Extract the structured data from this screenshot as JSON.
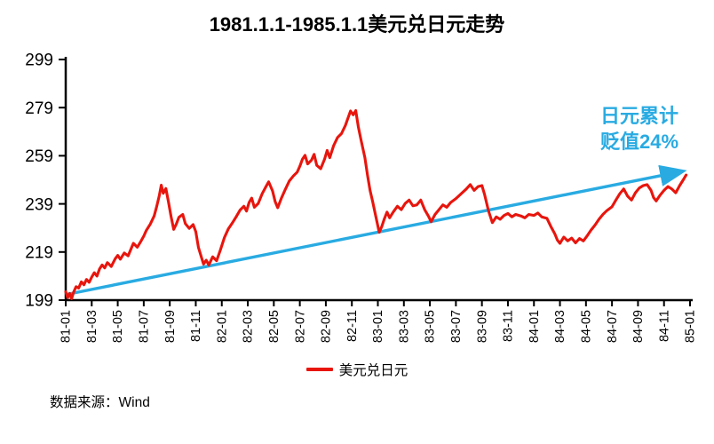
{
  "title": "1981.1.1-1985.1.1美元兑日元走势",
  "annotation": {
    "line1": "日元累计",
    "line2": "贬值24%",
    "color": "#29abe2"
  },
  "legend": {
    "label": "美元兑日元",
    "color": "#e8150d"
  },
  "source": "数据来源：Wind",
  "colors": {
    "line": "#e8150d",
    "arrow": "#29abe2",
    "axis": "#000000",
    "background": "#ffffff"
  },
  "chart_data": {
    "type": "line",
    "title": "1981.1.1-1985.1.1美元兑日元走势",
    "xlabel": "",
    "ylabel": "",
    "ylim": [
      199,
      299
    ],
    "yticks": [
      199,
      219,
      239,
      259,
      279,
      299
    ],
    "xticks": [
      "81-01",
      "81-03",
      "81-05",
      "81-07",
      "81-09",
      "81-11",
      "82-01",
      "82-03",
      "82-05",
      "82-07",
      "82-09",
      "82-11",
      "83-01",
      "83-03",
      "83-05",
      "83-07",
      "83-09",
      "83-11",
      "84-01",
      "84-03",
      "84-05",
      "84-07",
      "84-09",
      "84-11",
      "85-01"
    ],
    "x_unit": "months-from-1981-01",
    "grid": false,
    "legend_position": "bottom",
    "series": [
      {
        "name": "美元兑日元",
        "color": "#e8150d",
        "points": [
          [
            0.0,
            202.5
          ],
          [
            0.15,
            200.0
          ],
          [
            0.3,
            201.8
          ],
          [
            0.45,
            199.6
          ],
          [
            0.6,
            202.2
          ],
          [
            0.8,
            204.6
          ],
          [
            1.0,
            204.0
          ],
          [
            1.2,
            206.6
          ],
          [
            1.4,
            205.4
          ],
          [
            1.6,
            207.6
          ],
          [
            1.8,
            206.4
          ],
          [
            2.0,
            208.6
          ],
          [
            2.2,
            210.4
          ],
          [
            2.4,
            209.0
          ],
          [
            2.6,
            212.0
          ],
          [
            2.8,
            213.6
          ],
          [
            3.0,
            212.4
          ],
          [
            3.2,
            214.6
          ],
          [
            3.5,
            213.0
          ],
          [
            3.8,
            216.2
          ],
          [
            4.0,
            217.6
          ],
          [
            4.2,
            216.0
          ],
          [
            4.5,
            218.6
          ],
          [
            4.8,
            217.4
          ],
          [
            5.0,
            220.0
          ],
          [
            5.2,
            222.6
          ],
          [
            5.5,
            221.0
          ],
          [
            5.8,
            223.6
          ],
          [
            6.0,
            225.6
          ],
          [
            6.2,
            228.0
          ],
          [
            6.5,
            230.6
          ],
          [
            6.8,
            234.0
          ],
          [
            7.0,
            238.0
          ],
          [
            7.2,
            242.5
          ],
          [
            7.35,
            246.8
          ],
          [
            7.5,
            243.4
          ],
          [
            7.7,
            245.4
          ],
          [
            7.9,
            239.8
          ],
          [
            8.1,
            233.8
          ],
          [
            8.3,
            228.4
          ],
          [
            8.5,
            230.6
          ],
          [
            8.7,
            233.4
          ],
          [
            9.0,
            234.6
          ],
          [
            9.2,
            230.8
          ],
          [
            9.5,
            228.8
          ],
          [
            9.8,
            230.4
          ],
          [
            10.0,
            227.4
          ],
          [
            10.2,
            221.0
          ],
          [
            10.4,
            217.4
          ],
          [
            10.6,
            214.0
          ],
          [
            10.8,
            215.6
          ],
          [
            11.0,
            213.6
          ],
          [
            11.3,
            217.0
          ],
          [
            11.6,
            215.4
          ],
          [
            11.9,
            220.0
          ],
          [
            12.2,
            225.0
          ],
          [
            12.5,
            228.6
          ],
          [
            12.8,
            231.0
          ],
          [
            13.1,
            233.6
          ],
          [
            13.4,
            236.4
          ],
          [
            13.7,
            238.0
          ],
          [
            13.9,
            236.0
          ],
          [
            14.1,
            239.6
          ],
          [
            14.3,
            241.4
          ],
          [
            14.5,
            237.6
          ],
          [
            14.8,
            239.2
          ],
          [
            15.1,
            243.2
          ],
          [
            15.4,
            246.2
          ],
          [
            15.6,
            248.2
          ],
          [
            15.9,
            244.4
          ],
          [
            16.1,
            240.0
          ],
          [
            16.3,
            237.4
          ],
          [
            16.6,
            241.6
          ],
          [
            16.9,
            245.2
          ],
          [
            17.2,
            248.6
          ],
          [
            17.5,
            250.6
          ],
          [
            17.8,
            252.2
          ],
          [
            18.0,
            254.6
          ],
          [
            18.2,
            257.6
          ],
          [
            18.4,
            259.2
          ],
          [
            18.6,
            255.6
          ],
          [
            18.9,
            257.2
          ],
          [
            19.1,
            259.6
          ],
          [
            19.3,
            255.0
          ],
          [
            19.6,
            253.6
          ],
          [
            19.9,
            257.6
          ],
          [
            20.1,
            261.2
          ],
          [
            20.3,
            258.2
          ],
          [
            20.6,
            263.2
          ],
          [
            20.9,
            266.6
          ],
          [
            21.2,
            268.2
          ],
          [
            21.5,
            271.6
          ],
          [
            21.7,
            274.6
          ],
          [
            21.9,
            277.6
          ],
          [
            22.1,
            276.0
          ],
          [
            22.3,
            277.8
          ],
          [
            22.5,
            271.0
          ],
          [
            22.7,
            265.6
          ],
          [
            23.0,
            258.2
          ],
          [
            23.2,
            251.0
          ],
          [
            23.4,
            244.6
          ],
          [
            23.6,
            240.0
          ],
          [
            23.8,
            234.8
          ],
          [
            24.1,
            227.2
          ],
          [
            24.3,
            229.6
          ],
          [
            24.5,
            232.8
          ],
          [
            24.7,
            235.6
          ],
          [
            24.9,
            233.2
          ],
          [
            25.2,
            235.8
          ],
          [
            25.5,
            238.0
          ],
          [
            25.8,
            236.6
          ],
          [
            26.1,
            239.2
          ],
          [
            26.4,
            240.6
          ],
          [
            26.7,
            238.2
          ],
          [
            27.0,
            238.6
          ],
          [
            27.3,
            240.6
          ],
          [
            27.6,
            236.6
          ],
          [
            27.9,
            233.8
          ],
          [
            28.1,
            231.6
          ],
          [
            28.4,
            234.6
          ],
          [
            28.7,
            236.6
          ],
          [
            29.0,
            238.6
          ],
          [
            29.3,
            237.6
          ],
          [
            29.6,
            239.6
          ],
          [
            30.0,
            241.2
          ],
          [
            30.4,
            243.2
          ],
          [
            30.8,
            245.2
          ],
          [
            31.1,
            247.0
          ],
          [
            31.4,
            244.6
          ],
          [
            31.7,
            246.2
          ],
          [
            32.0,
            246.6
          ],
          [
            32.2,
            243.0
          ],
          [
            32.5,
            236.2
          ],
          [
            32.8,
            231.2
          ],
          [
            33.1,
            233.6
          ],
          [
            33.4,
            232.6
          ],
          [
            33.7,
            234.2
          ],
          [
            34.0,
            235.0
          ],
          [
            34.3,
            233.6
          ],
          [
            34.6,
            234.6
          ],
          [
            35.0,
            234.0
          ],
          [
            35.3,
            233.2
          ],
          [
            35.6,
            234.6
          ],
          [
            36.0,
            234.2
          ],
          [
            36.3,
            235.2
          ],
          [
            36.6,
            233.6
          ],
          [
            37.0,
            233.0
          ],
          [
            37.3,
            229.6
          ],
          [
            37.6,
            226.6
          ],
          [
            37.8,
            224.0
          ],
          [
            38.0,
            222.6
          ],
          [
            38.3,
            225.2
          ],
          [
            38.6,
            223.6
          ],
          [
            38.9,
            224.8
          ],
          [
            39.2,
            222.8
          ],
          [
            39.5,
            224.6
          ],
          [
            39.8,
            223.6
          ],
          [
            40.1,
            225.8
          ],
          [
            40.4,
            228.2
          ],
          [
            40.7,
            230.2
          ],
          [
            41.0,
            232.6
          ],
          [
            41.3,
            234.6
          ],
          [
            41.6,
            236.2
          ],
          [
            42.0,
            237.8
          ],
          [
            42.3,
            240.6
          ],
          [
            42.6,
            243.2
          ],
          [
            42.9,
            245.2
          ],
          [
            43.2,
            242.2
          ],
          [
            43.5,
            240.6
          ],
          [
            43.8,
            243.6
          ],
          [
            44.1,
            245.6
          ],
          [
            44.4,
            246.6
          ],
          [
            44.7,
            247.0
          ],
          [
            45.0,
            244.6
          ],
          [
            45.2,
            241.6
          ],
          [
            45.4,
            240.2
          ],
          [
            45.7,
            242.6
          ],
          [
            46.0,
            244.6
          ],
          [
            46.3,
            246.2
          ],
          [
            46.6,
            245.2
          ],
          [
            46.9,
            243.6
          ],
          [
            47.2,
            246.6
          ],
          [
            47.5,
            249.2
          ],
          [
            47.7,
            251.0
          ]
        ]
      },
      {
        "name": "日元累计贬值24%趋势箭头",
        "color": "#29abe2",
        "style": "arrow",
        "points": [
          [
            0,
            201.3
          ],
          [
            47.2,
            252.3
          ]
        ]
      }
    ]
  }
}
